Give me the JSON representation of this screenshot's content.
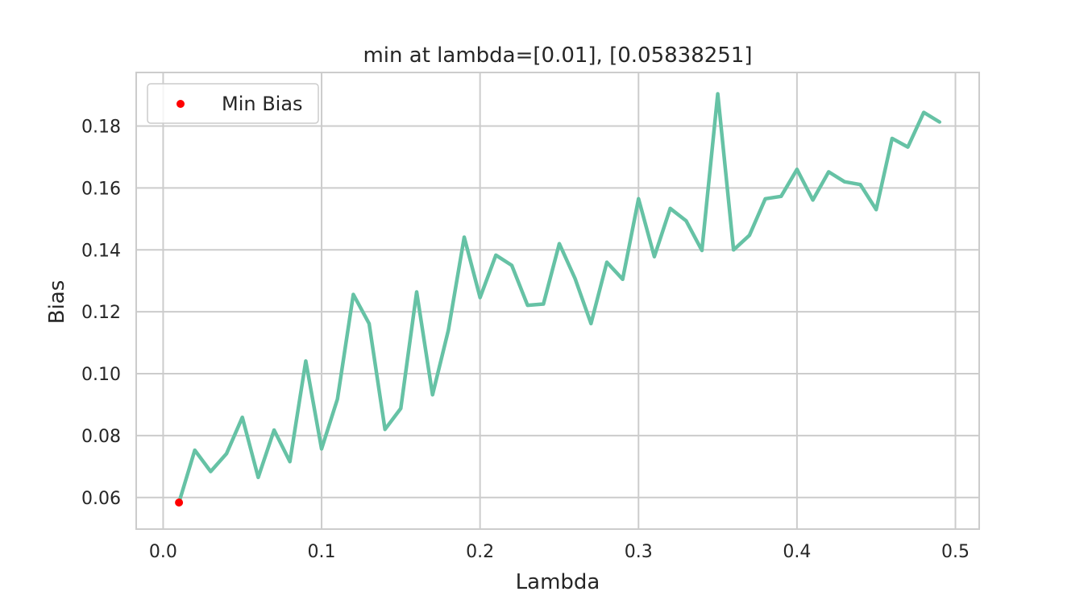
{
  "chart_data": {
    "type": "line",
    "title": "min at lambda=[0.01], [0.05838251]",
    "xlabel": "Lambda",
    "ylabel": "Bias",
    "xlim": [
      -0.017,
      0.515
    ],
    "ylim": [
      0.0498,
      0.1973
    ],
    "xticks": [
      0.0,
      0.1,
      0.2,
      0.3,
      0.4,
      0.5
    ],
    "xtick_labels": [
      "0.0",
      "0.1",
      "0.2",
      "0.3",
      "0.4",
      "0.5"
    ],
    "yticks": [
      0.06,
      0.08,
      0.1,
      0.12,
      0.14,
      0.16,
      0.18
    ],
    "ytick_labels": [
      "0.06",
      "0.08",
      "0.10",
      "0.12",
      "0.14",
      "0.16",
      "0.18"
    ],
    "grid": true,
    "legend_position": "upper-left",
    "series": [
      {
        "kind": "line",
        "color": "#66c2a5",
        "x": [
          0.01,
          0.02,
          0.03,
          0.04,
          0.05,
          0.06,
          0.07,
          0.08,
          0.09,
          0.1,
          0.11,
          0.12,
          0.13,
          0.14,
          0.15,
          0.16,
          0.17,
          0.18,
          0.19,
          0.2,
          0.21,
          0.22,
          0.23,
          0.24,
          0.25,
          0.26,
          0.27,
          0.28,
          0.29,
          0.3,
          0.31,
          0.32,
          0.33,
          0.34,
          0.35,
          0.36,
          0.37,
          0.38,
          0.39,
          0.4,
          0.41,
          0.42,
          0.43,
          0.44,
          0.45,
          0.46,
          0.47,
          0.48,
          0.49
        ],
        "y": [
          0.0584,
          0.0753,
          0.0684,
          0.0742,
          0.0859,
          0.0665,
          0.0818,
          0.0716,
          0.1041,
          0.0757,
          0.0918,
          0.1256,
          0.1162,
          0.082,
          0.0888,
          0.1264,
          0.0932,
          0.114,
          0.1441,
          0.1246,
          0.1383,
          0.135,
          0.1221,
          0.1225,
          0.142,
          0.1307,
          0.1162,
          0.136,
          0.1305,
          0.1565,
          0.1378,
          0.1534,
          0.1494,
          0.1398,
          0.1904,
          0.14,
          0.1447,
          0.1565,
          0.1573,
          0.166,
          0.1561,
          0.1652,
          0.162,
          0.1611,
          0.153,
          0.176,
          0.1732,
          0.1844,
          0.1813
        ]
      },
      {
        "name": "Min Bias",
        "kind": "scatter",
        "color": "#ff0000",
        "x": [
          0.01
        ],
        "y": [
          0.05838251
        ]
      }
    ]
  }
}
